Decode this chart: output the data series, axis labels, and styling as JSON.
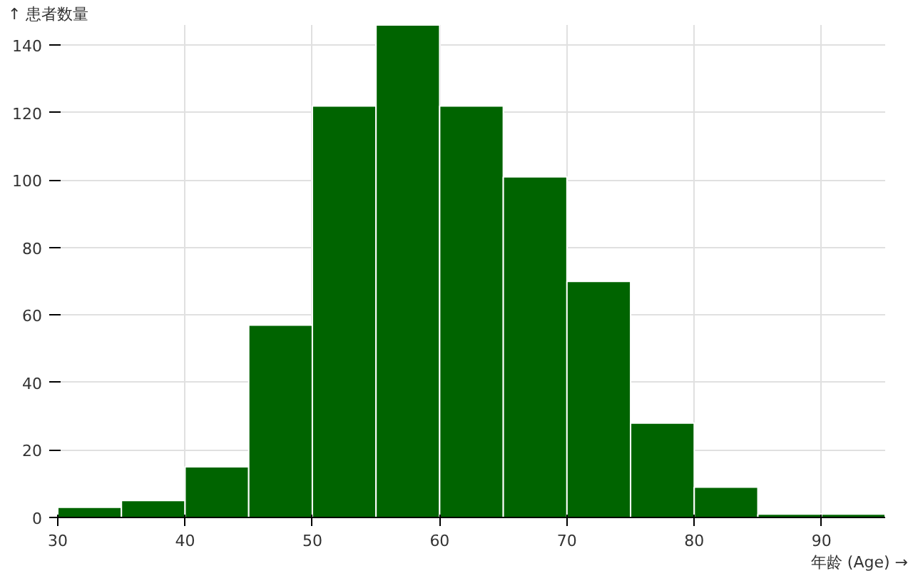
{
  "chart_data": {
    "type": "histogram",
    "xlabel": "年龄 (Age) →",
    "ylabel": "↑ 患者数量",
    "bins": [
      30,
      35,
      40,
      45,
      50,
      55,
      60,
      65,
      70,
      75,
      80,
      85,
      90,
      95
    ],
    "values": [
      3,
      5,
      15,
      57,
      122,
      146,
      122,
      101,
      70,
      28,
      9,
      1,
      1
    ],
    "color": "#006400",
    "xlim": [
      30,
      95
    ],
    "xticks": [
      30,
      40,
      50,
      60,
      70,
      80,
      90
    ],
    "ylim": [
      0,
      146
    ],
    "yticks": [
      0,
      20,
      40,
      60,
      80,
      100,
      120,
      140
    ],
    "grid": true
  }
}
